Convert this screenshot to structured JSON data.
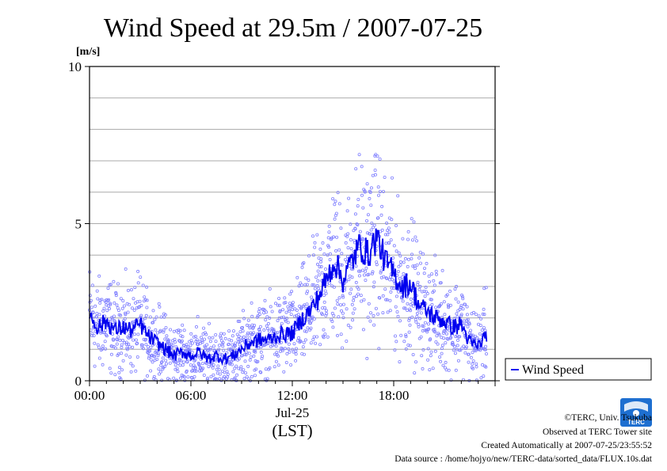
{
  "chart_data": {
    "type": "scatter",
    "title": "Wind Speed at 29.5m / 2007-07-25",
    "ylabel_unit": "[m/s]",
    "xlabel": "(LST)",
    "date_label": "Jul-25",
    "ylim": [
      0,
      10
    ],
    "xlim_hours": [
      0,
      23.5
    ],
    "yticks": [
      "0",
      "5",
      "10"
    ],
    "ytick_values": [
      0,
      5,
      10
    ],
    "xticks": [
      "00:00",
      "06:00",
      "12:00",
      "18:00"
    ],
    "xtick_hours": [
      0,
      6,
      12,
      18
    ],
    "grid": true,
    "legend": {
      "position": "right",
      "entries": [
        "Wind Speed"
      ]
    },
    "series": [
      {
        "name": "Wind Speed",
        "style": "line+scatter",
        "hours": [
          0,
          0.5,
          1,
          1.5,
          2,
          2.5,
          3,
          3.5,
          4,
          4.5,
          5,
          5.5,
          6,
          6.5,
          7,
          7.5,
          8,
          8.5,
          9,
          9.5,
          10,
          10.5,
          11,
          11.5,
          12,
          12.5,
          13,
          13.5,
          14,
          14.5,
          15,
          15.5,
          16,
          16.5,
          17,
          17.5,
          18,
          18.5,
          19,
          19.5,
          20,
          20.5,
          21,
          21.5,
          22,
          22.5,
          23,
          23.5
        ],
        "values": [
          2.1,
          1.7,
          1.9,
          1.6,
          1.7,
          1.6,
          1.8,
          1.4,
          1.2,
          1.0,
          0.8,
          0.9,
          0.8,
          0.9,
          0.7,
          0.8,
          0.7,
          0.8,
          1.0,
          1.2,
          1.3,
          1.3,
          1.4,
          1.5,
          1.5,
          1.9,
          2.2,
          2.6,
          3.2,
          3.8,
          3.2,
          3.8,
          4.3,
          4.0,
          4.6,
          3.8,
          3.4,
          3.0,
          3.1,
          2.4,
          2.2,
          2.0,
          1.9,
          1.7,
          1.8,
          1.2,
          1.1,
          1.5
        ]
      }
    ],
    "scatter_color": "#8080ff",
    "line_color": "#0000ee"
  },
  "credits": {
    "copyright": "©TERC, Univ. Tsukuba",
    "site": "Observed at TERC Tower site",
    "created": "Created Automatically at 2007-07-25/23:55:52",
    "source": "Data source : /home/hojyo/new/TERC-data/sorted_data/FLUX.10s.dat"
  },
  "logo": {
    "text": "TERC",
    "color": "#1e6fd0"
  }
}
